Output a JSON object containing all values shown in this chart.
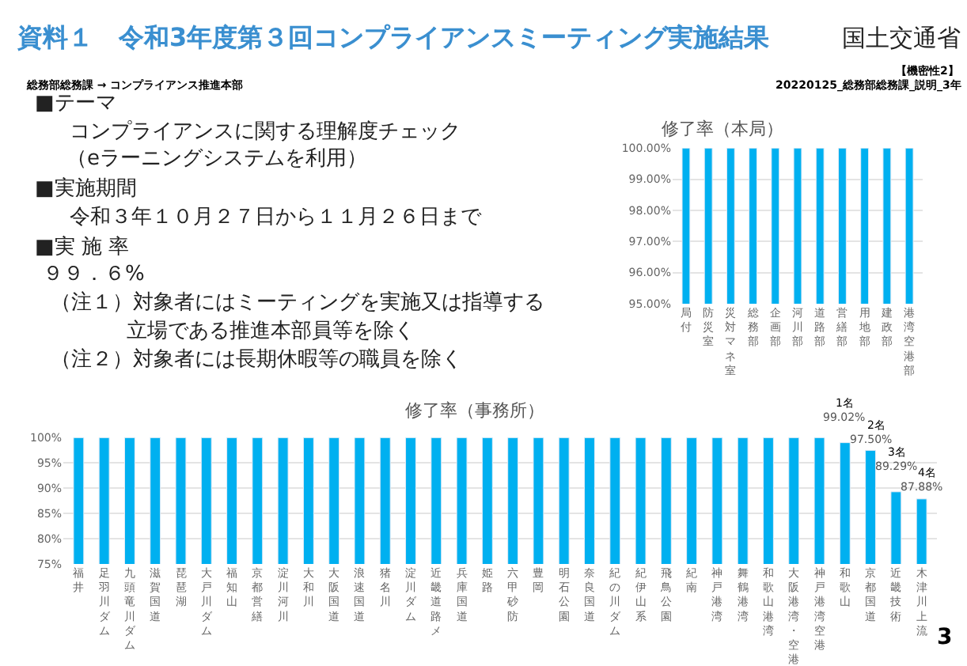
{
  "chart_data": [
    {
      "type": "other",
      "title": "資料１　令和3年度第３回コンプライアンスミーティング実施結果",
      "annotations": [
        "国土交通省",
        "【機密性2】",
        "総務部総務課 → コンプライアンス推進本部",
        "20220125_総務部総務課_説明_3年",
        "■テーマ",
        "コンプライアンスに関する理解度チェック",
        "（eラーニングシステムを利用）",
        "■実施期間",
        "令和３年１０月２７日から１１月２６日まで",
        "■実 施 率",
        "９９．６%",
        "（注１）対象者にはミーティングを実施又は指導する",
        "立場である推進本部員等を除く",
        "（注２）対象者には長期休暇等の職員を除く",
        "3"
      ]
    },
    {
      "type": "bar",
      "title": "修了率（本局）",
      "color": "#00b0f0",
      "grid": "y",
      "categories": [
        "局付",
        "防災室",
        "災対マネ室",
        "総務部",
        "企画部",
        "河川部",
        "道路部",
        "営繕部",
        "用地部",
        "建政部",
        "港湾空港部"
      ],
      "values": [
        100,
        100,
        100,
        100,
        100,
        100,
        100,
        100,
        100,
        100,
        100
      ],
      "ylim": [
        95,
        100
      ],
      "yticks": [
        {
          "value": 95,
          "label": "95.00%"
        },
        {
          "value": 96,
          "label": "96.00%"
        },
        {
          "value": 97,
          "label": "97.00%"
        },
        {
          "value": 98,
          "label": "98.00%"
        },
        {
          "value": 99,
          "label": "99.00%"
        },
        {
          "value": 100,
          "label": "100.00%"
        }
      ]
    },
    {
      "type": "bar",
      "title": "修了率（事務所）",
      "color": "#00b0f0",
      "grid": "y",
      "categories": [
        "福井",
        "足羽川ダム",
        "九頭竜川ダム",
        "滋賀国道",
        "琵琶湖",
        "大戸川ダム",
        "福知山",
        "京都営繕",
        "淀川河川",
        "大和川",
        "大阪国道",
        "浪速国道",
        "猪名川",
        "淀川ダム",
        "近畿道路メ",
        "兵庫国道",
        "姫路",
        "六甲砂防",
        "豊岡",
        "明石公園",
        "奈良国道",
        "紀の川ダム",
        "紀伊山系",
        "飛鳥公園",
        "紀南",
        "神戸港湾",
        "舞鶴港湾",
        "和歌山港湾",
        "大阪港湾・空港",
        "神戸港湾空港",
        "和歌山",
        "京都国道",
        "近畿技術",
        "木津川上流"
      ],
      "values": [
        100,
        100,
        100,
        100,
        100,
        100,
        100,
        100,
        100,
        100,
        100,
        100,
        100,
        100,
        100,
        100,
        100,
        100,
        100,
        100,
        100,
        100,
        100,
        100,
        100,
        100,
        100,
        100,
        100,
        100,
        99.02,
        97.5,
        89.29,
        87.88
      ],
      "value_labels": [
        null,
        null,
        null,
        null,
        null,
        null,
        null,
        null,
        null,
        null,
        null,
        null,
        null,
        null,
        null,
        null,
        null,
        null,
        null,
        null,
        null,
        null,
        null,
        null,
        null,
        null,
        null,
        null,
        null,
        null,
        "99.02%",
        "97.50%",
        "89.29%",
        "87.88%"
      ],
      "ylim": [
        75,
        100
      ],
      "yticks": [
        {
          "value": 75,
          "label": "75%"
        },
        {
          "value": 80,
          "label": "80%"
        },
        {
          "value": 85,
          "label": "85%"
        },
        {
          "value": 90,
          "label": "90%"
        },
        {
          "value": 95,
          "label": "95%"
        },
        {
          "value": 100,
          "label": "100%"
        }
      ],
      "annotations": [
        "1名",
        "2名",
        "3名",
        "4名"
      ]
    }
  ]
}
